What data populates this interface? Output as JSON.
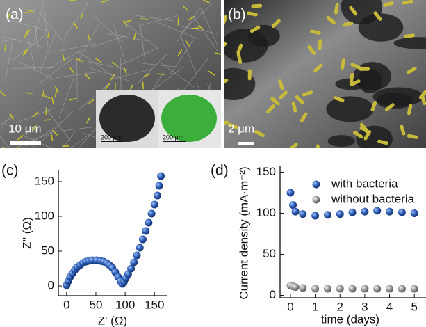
{
  "panels": [
    {
      "label": "(a)",
      "scale_bar": "10 μm",
      "inset_scale_bars": [
        "200 μm",
        "200 μm"
      ]
    },
    {
      "label": "(b)",
      "scale_bar": "2 μm"
    }
  ],
  "chart_data": [
    {
      "type": "scatter",
      "label": "(c)",
      "x_label": "Z' (Ω)",
      "y_label": "Z'' (Ω)",
      "x": [
        0,
        3,
        6,
        10,
        14,
        18,
        23,
        28,
        33,
        38,
        44,
        51,
        58,
        63,
        68,
        73,
        78,
        83,
        88,
        92,
        95,
        98,
        101,
        105,
        110,
        115,
        120,
        125,
        130,
        135,
        140,
        145,
        150,
        155,
        158,
        161
      ],
      "values": [
        1,
        7,
        13,
        18,
        23,
        27,
        30,
        33,
        35,
        36,
        37,
        37,
        36,
        35,
        33,
        30,
        26,
        20,
        13,
        7,
        3,
        6,
        11,
        17,
        25,
        34,
        44,
        55,
        67,
        79,
        91,
        104,
        117,
        130,
        144,
        158
      ],
      "color": "#2f5fb8",
      "xlim": [
        -14,
        171
      ],
      "ylim": [
        -14,
        166
      ],
      "xticks": [
        0,
        50,
        100,
        150
      ],
      "yticks": [
        0,
        50,
        100,
        150
      ]
    },
    {
      "type": "scatter",
      "label": "(d)",
      "x_label": "time (days)",
      "y_label": "Current density (mA·m⁻²)",
      "x": [
        0,
        0.1,
        0.2,
        0.5,
        1,
        1.5,
        2,
        2.5,
        3,
        3.5,
        4,
        4.5,
        5
      ],
      "series": [
        {
          "name": "with bacteria",
          "color": "#2f5fb8",
          "values": [
            125,
            110,
            102,
            99,
            97,
            98,
            99,
            101,
            102,
            103,
            102,
            101,
            100
          ]
        },
        {
          "name": "without bacteria",
          "color": "#9a9a9a",
          "values": [
            12,
            11,
            10,
            9,
            8,
            8,
            8,
            8,
            8,
            8,
            8,
            8,
            8
          ]
        }
      ],
      "xlim": [
        -0.42,
        5.5
      ],
      "ylim": [
        -3,
        158
      ],
      "xticks": [
        0,
        1,
        2,
        3,
        4,
        5
      ],
      "yticks": [
        0,
        50,
        100,
        150
      ],
      "legend": "upper right"
    }
  ]
}
